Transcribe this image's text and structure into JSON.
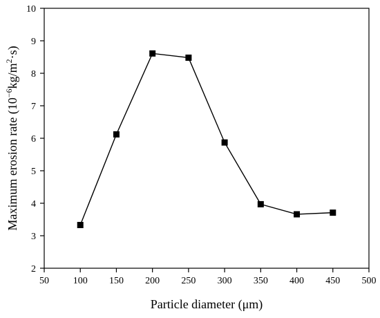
{
  "chart_data": {
    "type": "line",
    "title": "",
    "xlabel": "Particle diameter (μm)",
    "ylabel_parts": {
      "prefix": "Maximum erosion rate (10",
      "exponent": "−6",
      "middle": "kg/m",
      "exponent2": "2",
      "suffix": "·s)"
    },
    "xlim": [
      50,
      500
    ],
    "ylim": [
      2,
      10
    ],
    "xticks": [
      50,
      100,
      150,
      200,
      250,
      300,
      350,
      400,
      450,
      500
    ],
    "yticks": [
      2,
      3,
      4,
      5,
      6,
      7,
      8,
      9,
      10
    ],
    "grid": false,
    "series": [
      {
        "marker": "square",
        "color": "#000000",
        "x": [
          100,
          150,
          200,
          250,
          300,
          350,
          400,
          450
        ],
        "y": [
          3.33,
          6.12,
          8.61,
          8.48,
          5.87,
          3.97,
          3.66,
          3.71
        ]
      }
    ]
  }
}
